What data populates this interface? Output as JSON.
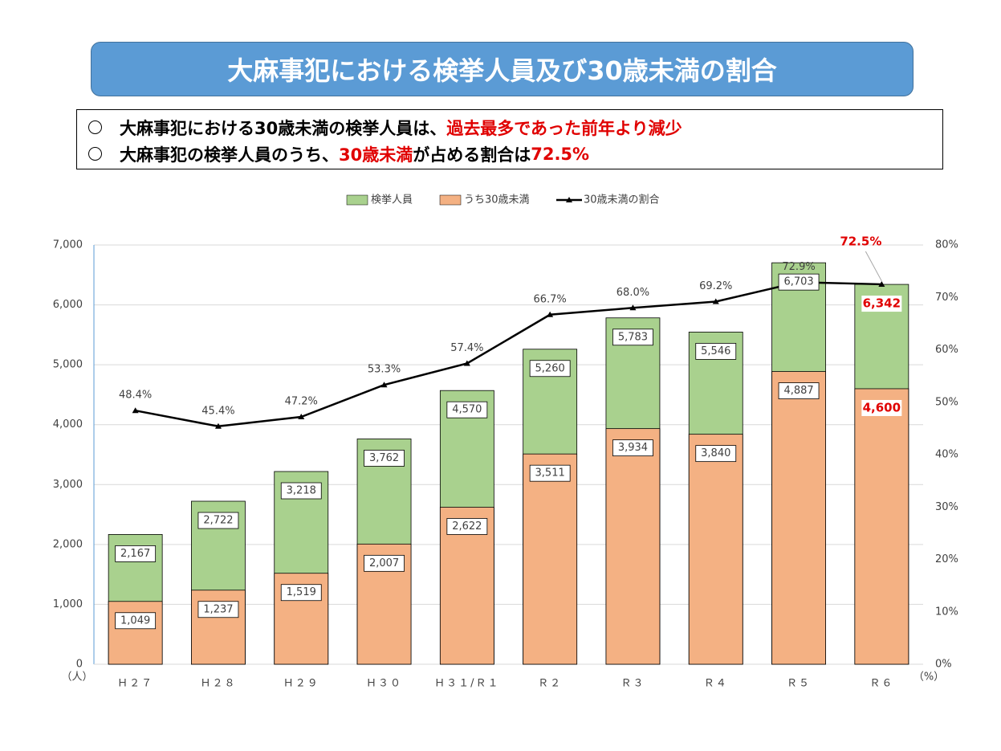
{
  "chart_data": {
    "type": "bar",
    "title": "大麻事犯における検挙人員及び30歳未満の割合",
    "notes": [
      [
        {
          "text": "大麻事犯における30歳未満の検挙人員は、"
        },
        {
          "text": "過去最多であった前年より減少",
          "color": "#e00000"
        }
      ],
      [
        {
          "text": "大麻事犯の検挙人員のうち、"
        },
        {
          "text": "30歳未満",
          "color": "#e00000"
        },
        {
          "text": "が占める割合は"
        },
        {
          "text": "72.5%",
          "color": "#e00000"
        }
      ]
    ],
    "categories": [
      "Ｈ２７",
      "Ｈ２８",
      "Ｈ２９",
      "Ｈ３０",
      "Ｈ３１/Ｒ１",
      "Ｒ２",
      "Ｒ３",
      "Ｒ４",
      "Ｒ５",
      "Ｒ６"
    ],
    "series": [
      {
        "name": "検挙人員",
        "type": "bar",
        "color": "#a9d18e",
        "values": [
          2167,
          2722,
          3218,
          3762,
          4570,
          5260,
          5783,
          5546,
          6703,
          6342
        ],
        "value_labels": [
          "2,167",
          "2,722",
          "3,218",
          "3,762",
          "4,570",
          "5,260",
          "5,783",
          "5,546",
          "6,703",
          "6,342"
        ]
      },
      {
        "name": "うち30歳未満",
        "type": "bar",
        "color": "#f4b183",
        "values": [
          1049,
          1237,
          1519,
          2007,
          2622,
          3511,
          3934,
          3840,
          4887,
          4600
        ],
        "value_labels": [
          "1,049",
          "1,237",
          "1,519",
          "2,007",
          "2,622",
          "3,511",
          "3,934",
          "3,840",
          "4,887",
          "4,600"
        ]
      },
      {
        "name": "30歳未満の割合",
        "type": "line",
        "axis": "y2",
        "color": "#000000",
        "values": [
          48.4,
          45.4,
          47.2,
          53.3,
          57.4,
          66.7,
          68.0,
          69.2,
          72.9,
          72.5
        ],
        "value_labels": [
          "48.4%",
          "45.4%",
          "47.2%",
          "53.3%",
          "57.4%",
          "66.7%",
          "68.0%",
          "69.2%",
          "72.9%",
          "72.5%"
        ]
      }
    ],
    "highlight_category": "Ｒ６",
    "highlight_color": "#e00000",
    "ylim": [
      0,
      7000
    ],
    "yticks": [
      0,
      {
        "value": 1000,
        "label": "1,000"
      },
      {
        "value": 2000,
        "label": "2,000"
      },
      {
        "value": 3000,
        "label": "3,000"
      },
      {
        "value": 4000,
        "label": "4,000"
      },
      {
        "value": 5000,
        "label": "5,000"
      },
      {
        "value": 6000,
        "label": "6,000"
      },
      {
        "value": 7000,
        "label": "7,000"
      }
    ],
    "y2lim": [
      0,
      80
    ],
    "y2ticks": [
      {
        "value": 0,
        "label": "0%"
      },
      {
        "value": 10,
        "label": "10%"
      },
      {
        "value": 20,
        "label": "20%"
      },
      {
        "value": 30,
        "label": "30%"
      },
      {
        "value": 40,
        "label": "40%"
      },
      {
        "value": 50,
        "label": "50%"
      },
      {
        "value": 60,
        "label": "60%"
      },
      {
        "value": 70,
        "label": "70%"
      },
      {
        "value": 80,
        "label": "80%"
      }
    ],
    "y_unit": "（人）",
    "y2_unit": "（%）",
    "grid": true
  }
}
